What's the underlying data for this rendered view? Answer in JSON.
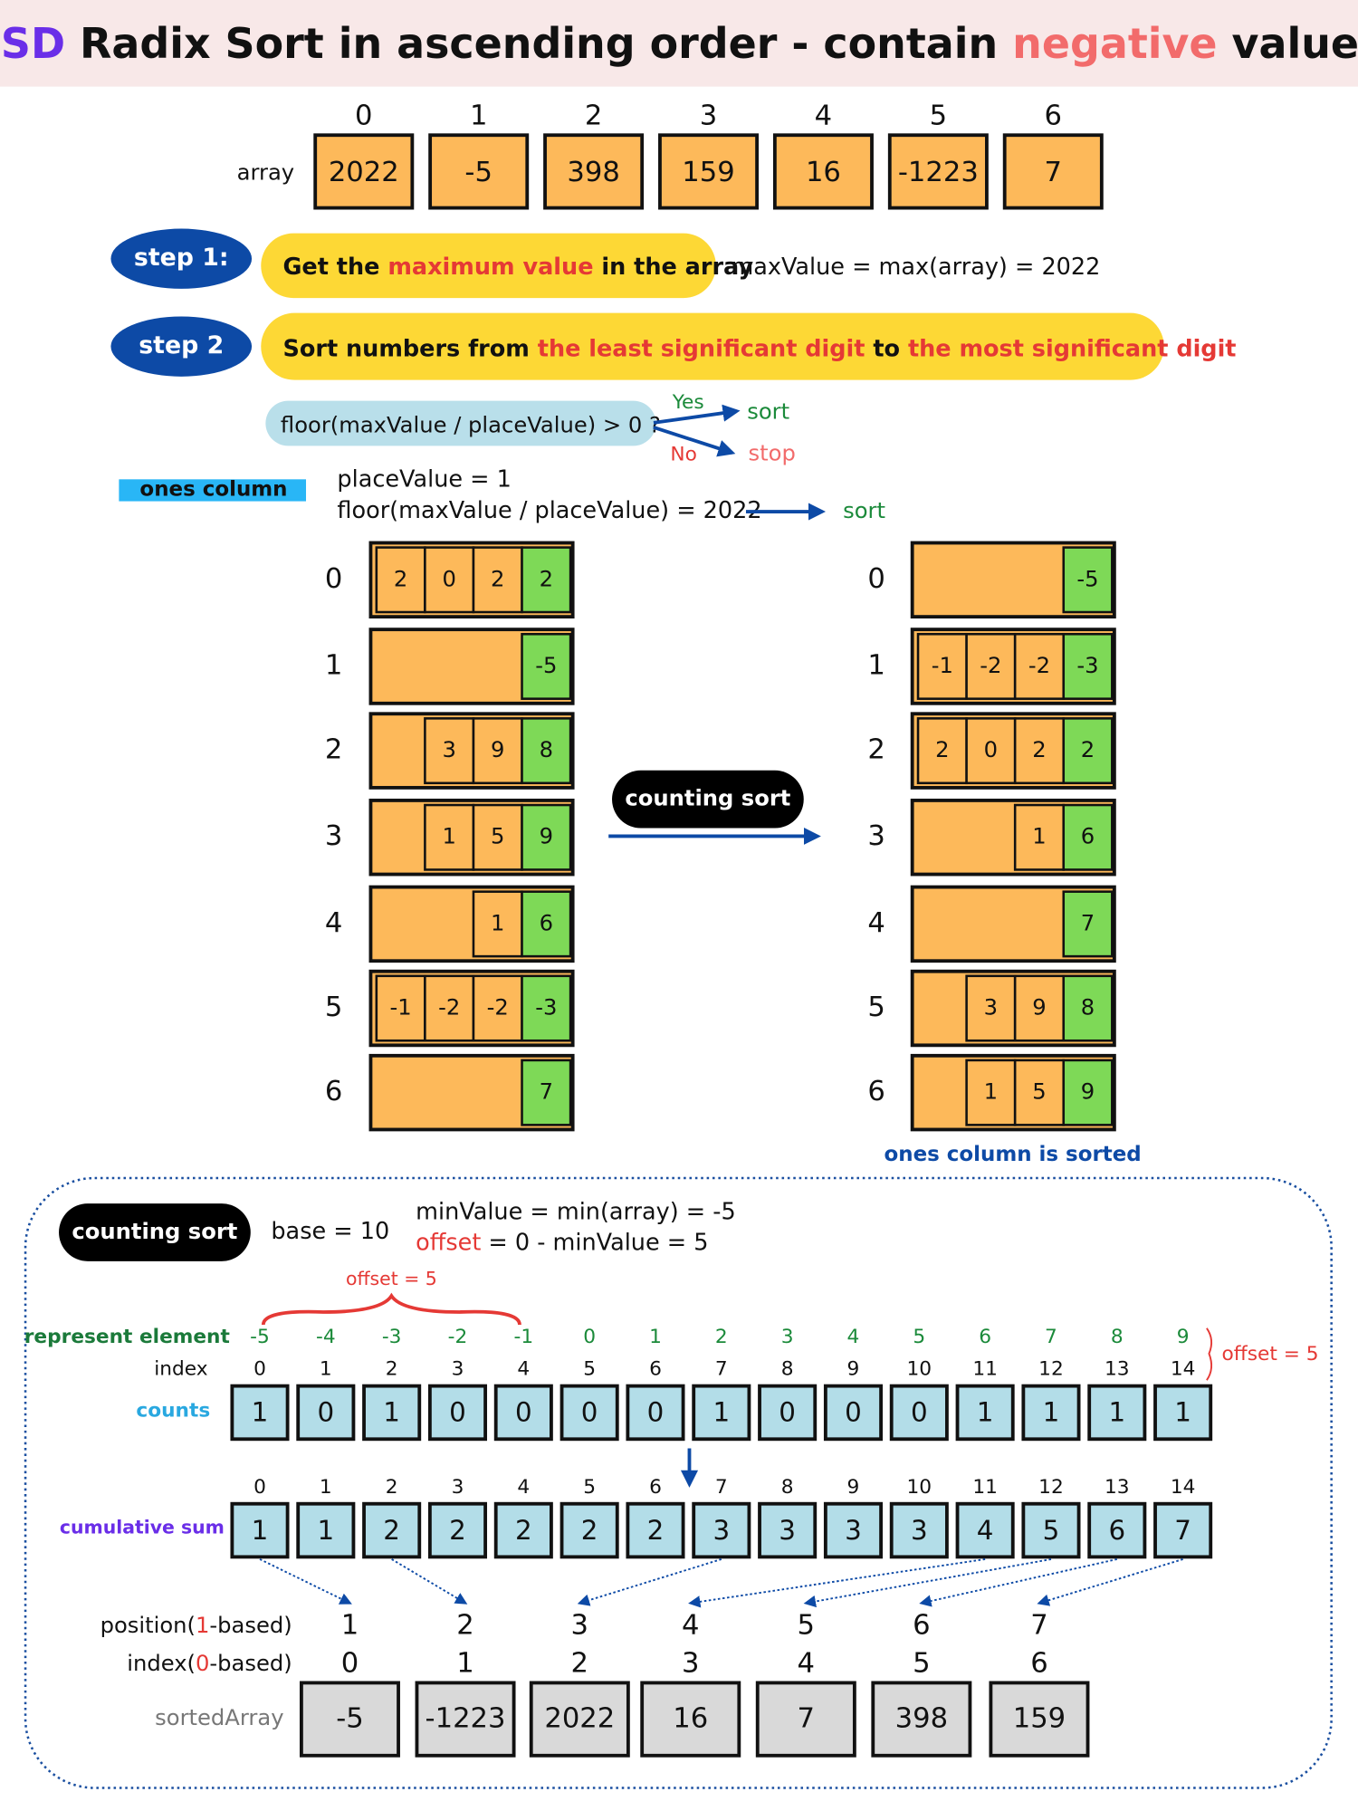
{
  "title": {
    "prefix": "LSD",
    "main": "Radix Sort in ascending order - contain",
    "highlight": "negative",
    "suffix": "values"
  },
  "array": {
    "label": "array",
    "indices": [
      0,
      1,
      2,
      3,
      4,
      5,
      6
    ],
    "values": [
      2022,
      -5,
      398,
      159,
      16,
      -1223,
      7
    ]
  },
  "step1": {
    "badge": "step 1:",
    "before": "Get the",
    "highlight": "maximum value",
    "after": "in the array",
    "formula": "maxValue = max(array) = 2022"
  },
  "step2": {
    "badge": "step 2",
    "before": "Sort numbers from",
    "highlight1": "the least significant digit",
    "middle": "to",
    "highlight2": "the most significant digit"
  },
  "condition": {
    "text": "floor(maxValue / placeValue) > 0 ?",
    "yes": "Yes",
    "yes_result": "sort",
    "no": "No",
    "no_result": "stop"
  },
  "ones": {
    "tag": "ones column",
    "place": "placeValue = 1",
    "floor": "floor(maxValue / placeValue) = 2022",
    "result": "sort",
    "action": "counting sort",
    "sorted_note": "ones column is sorted",
    "before": [
      {
        "index": 0,
        "digits": [
          2,
          0,
          2,
          2
        ]
      },
      {
        "index": 1,
        "digits": [
          -5
        ]
      },
      {
        "index": 2,
        "digits": [
          3,
          9,
          8
        ]
      },
      {
        "index": 3,
        "digits": [
          1,
          5,
          9
        ]
      },
      {
        "index": 4,
        "digits": [
          1,
          6
        ]
      },
      {
        "index": 5,
        "digits": [
          -1,
          -2,
          -2,
          -3
        ]
      },
      {
        "index": 6,
        "digits": [
          7
        ]
      }
    ],
    "after": [
      {
        "index": 0,
        "digits": [
          -5
        ]
      },
      {
        "index": 1,
        "digits": [
          -1,
          -2,
          -2,
          -3
        ]
      },
      {
        "index": 2,
        "digits": [
          2,
          0,
          2,
          2
        ]
      },
      {
        "index": 3,
        "digits": [
          1,
          6
        ]
      },
      {
        "index": 4,
        "digits": [
          7
        ]
      },
      {
        "index": 5,
        "digits": [
          3,
          9,
          8
        ]
      },
      {
        "index": 6,
        "digits": [
          1,
          5,
          9
        ]
      }
    ]
  },
  "counting": {
    "badge": "counting sort",
    "base": "base = 10",
    "min": "minValue = min(array) = -5",
    "offset_word": "offset",
    "offset_rest": "= 0 - minValue = 5",
    "brace_label": "offset = 5",
    "side_label": "offset = 5",
    "represent_label": "represent element",
    "represent": [
      -5,
      -4,
      -3,
      -2,
      -1,
      0,
      1,
      2,
      3,
      4,
      5,
      6,
      7,
      8,
      9
    ],
    "index_label": "index",
    "index": [
      0,
      1,
      2,
      3,
      4,
      5,
      6,
      7,
      8,
      9,
      10,
      11,
      12,
      13,
      14
    ],
    "counts_label": "counts",
    "counts": [
      1,
      0,
      1,
      0,
      0,
      0,
      0,
      1,
      0,
      0,
      0,
      1,
      1,
      1,
      1
    ],
    "cumsum_label": "cumulative sum",
    "cumsum_index": [
      0,
      1,
      2,
      3,
      4,
      5,
      6,
      7,
      8,
      9,
      10,
      11,
      12,
      13,
      14
    ],
    "cumsum": [
      1,
      1,
      2,
      2,
      2,
      2,
      2,
      3,
      3,
      3,
      3,
      4,
      5,
      6,
      7
    ],
    "position_label": {
      "before": "position(",
      "highlight": "1",
      "after": "-based)"
    },
    "positions": [
      1,
      2,
      3,
      4,
      5,
      6,
      7
    ],
    "sorted_index_label": {
      "before": "index(",
      "highlight": "0",
      "after": "-based)"
    },
    "sorted_index": [
      0,
      1,
      2,
      3,
      4,
      5,
      6
    ],
    "sorted_label": "sortedArray",
    "sorted": [
      -5,
      -1223,
      2022,
      16,
      7,
      398,
      159
    ]
  }
}
